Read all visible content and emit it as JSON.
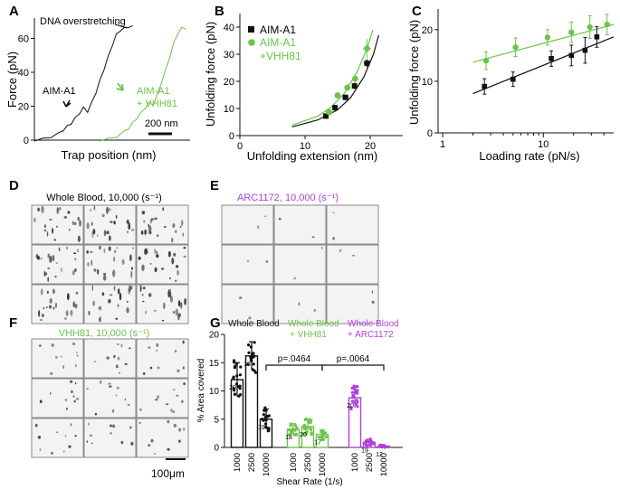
{
  "colors": {
    "black": "#111111",
    "green": "#6cc44a",
    "purple": "#b040d8",
    "gray_thumb": "#a0a0a0"
  },
  "panel_labels": {
    "a": "A",
    "b": "B",
    "c": "C",
    "d": "D",
    "e": "E",
    "f": "F",
    "g": "G"
  },
  "chart_data": [
    {
      "id": "A",
      "type": "line",
      "title": "",
      "xlabel": "Trap position (nm)",
      "ylabel": "Force (pN)",
      "ylim": [
        0,
        72
      ],
      "yticks": [
        0,
        20,
        40,
        60
      ],
      "annotations": [
        "DNA overstretching",
        "AIM-A1",
        "AIM-A1 + VHH81",
        "200 nm"
      ],
      "series": [
        {
          "name": "AIM-A1",
          "color": "#111111",
          "x": [
            0,
            10,
            20,
            30,
            35,
            40,
            45,
            50,
            55,
            60,
            65,
            70,
            75,
            80,
            85,
            90,
            95,
            100,
            105,
            110,
            115,
            120
          ],
          "y": [
            0,
            0.5,
            2,
            4,
            6,
            8,
            10,
            13,
            16,
            19,
            17,
            22,
            28,
            35,
            42,
            49,
            56,
            62,
            65,
            66,
            67,
            67
          ]
        },
        {
          "name": "AIM-A1 + VHH81",
          "color": "#6cc44a",
          "x": [
            80,
            90,
            100,
            110,
            115,
            120,
            125,
            130,
            135,
            140,
            145,
            150,
            155,
            160,
            165,
            170,
            175,
            180,
            185
          ],
          "y": [
            0,
            0.5,
            2,
            5,
            7,
            10,
            13,
            16,
            19,
            22,
            21,
            27,
            34,
            41,
            49,
            57,
            63,
            66,
            66
          ]
        }
      ]
    },
    {
      "id": "B",
      "type": "scatter",
      "xlabel": "Unfolding extension (nm)",
      "ylabel": "Unfolding force (pN)",
      "xlim": [
        0,
        25
      ],
      "ylim": [
        0,
        45
      ],
      "xticks": [
        0,
        10,
        20
      ],
      "yticks": [
        0,
        10,
        20,
        30,
        40
      ],
      "legend": [
        "AIM-A1",
        "AIM-A1",
        "+VHH81"
      ],
      "series": [
        {
          "name": "AIM-A1",
          "color": "#111111",
          "points": [
            [
              13.2,
              7.2
            ],
            [
              14.6,
              10.3
            ],
            [
              16.2,
              14.1
            ],
            [
              17.6,
              18.3
            ],
            [
              19.5,
              26.7
            ]
          ],
          "xerr": [
            0.4,
            0.4,
            0.5,
            0.4,
            0.5
          ],
          "yerr": [
            1.0,
            1.0,
            1.0,
            1.2,
            1.5
          ],
          "fit": [
            [
              8,
              3.2
            ],
            [
              12,
              5.8
            ],
            [
              15,
              9.5
            ],
            [
              17,
              14.0
            ],
            [
              19,
              21.5
            ],
            [
              20.5,
              30.0
            ],
            [
              21.3,
              37.0
            ]
          ]
        },
        {
          "name": "AIM-A1 +VHH81",
          "color": "#6cc44a",
          "points": [
            [
              13.7,
              8.6
            ],
            [
              15.0,
              14.8
            ],
            [
              16.5,
              17.7
            ],
            [
              17.7,
              21.0
            ],
            [
              19.5,
              32.1
            ]
          ],
          "xerr": [
            0.4,
            0.4,
            0.5,
            0.4,
            0.6
          ],
          "yerr": [
            1.2,
            1.2,
            1.2,
            1.5,
            3.5
          ],
          "fit": [
            [
              8,
              3.8
            ],
            [
              12,
              7.2
            ],
            [
              14,
              10.5
            ],
            [
              16,
              15.5
            ],
            [
              18,
              23.5
            ],
            [
              19.5,
              32.0
            ],
            [
              20.4,
              39.0
            ]
          ]
        }
      ]
    },
    {
      "id": "C",
      "type": "scatter",
      "xlabel": "Loading rate (pN/s)",
      "ylabel": "Unfolding force (pN)",
      "xscale": "log",
      "xlim": [
        0.9,
        50
      ],
      "ylim": [
        0,
        24
      ],
      "xticks": [
        1,
        10
      ],
      "yticks": [
        0,
        10,
        20
      ],
      "series": [
        {
          "name": "AIM-A1",
          "color": "#111111",
          "points": [
            [
              2.6,
              9.0
            ],
            [
              5.0,
              10.4
            ],
            [
              12.0,
              14.4
            ],
            [
              19.0,
              15.0
            ],
            [
              26.0,
              16.0
            ],
            [
              34.0,
              18.6
            ]
          ],
          "yerr": [
            1.5,
            1.4,
            1.5,
            2.0,
            2.5,
            2.0
          ],
          "fit": [
            [
              2.0,
              7.6
            ],
            [
              50,
              18.6
            ]
          ]
        },
        {
          "name": "AIM-A1 +VHH81",
          "color": "#6cc44a",
          "points": [
            [
              2.7,
              14.0
            ],
            [
              5.3,
              16.6
            ],
            [
              11.0,
              18.5
            ],
            [
              19.0,
              19.5
            ],
            [
              29.0,
              20.5
            ],
            [
              43.0,
              21.0
            ]
          ],
          "yerr": [
            1.7,
            1.8,
            1.5,
            2.0,
            2.2,
            2.0
          ],
          "fit": [
            [
              2.0,
              13.7
            ],
            [
              50,
              21.0
            ]
          ]
        }
      ]
    },
    {
      "id": "G",
      "type": "bar",
      "xlabel": "Shear Rate (1/s)",
      "ylabel": "% Area covered",
      "ylim": [
        0,
        20
      ],
      "yticks": [
        0,
        5,
        10,
        15,
        20
      ],
      "groups": [
        "Whole Blood",
        "Whole Blood + VHH81",
        "Whole Blood + ARC1172"
      ],
      "categories": [
        "1000",
        "2500",
        "10000",
        "1000",
        "2500",
        "10000",
        "1000",
        "2500",
        "10000"
      ],
      "values": [
        12.0,
        16.2,
        5.0,
        3.2,
        3.7,
        2.3,
        8.8,
        0.9,
        0.2
      ],
      "errors": [
        3.0,
        2.5,
        1.8,
        1.0,
        1.2,
        0.8,
        1.8,
        0.5,
        0.2
      ],
      "n_labels": [
        "20",
        "18",
        "19",
        "18",
        "20",
        "17",
        "20",
        "19",
        "12"
      ],
      "bar_colors": [
        "#111111",
        "#111111",
        "#111111",
        "#6cc44a",
        "#6cc44a",
        "#6cc44a",
        "#b040d8",
        "#b040d8",
        "#b040d8"
      ],
      "significance": [
        {
          "from": 2,
          "to": 5,
          "label": "p=.0464"
        },
        {
          "from": 5,
          "to": 8,
          "label": "p=.0064"
        }
      ]
    }
  ],
  "micrographs": {
    "d": {
      "title": "Whole Blood, 10,000 (s⁻¹)",
      "color": "#111111"
    },
    "e": {
      "title": "ARC1172, 10,000 (s⁻¹)",
      "color": "#b040d8"
    },
    "f": {
      "title": "VHH81, 10,000 (s⁻¹)",
      "color": "#6cc44a",
      "scale_label": "100μm"
    }
  }
}
